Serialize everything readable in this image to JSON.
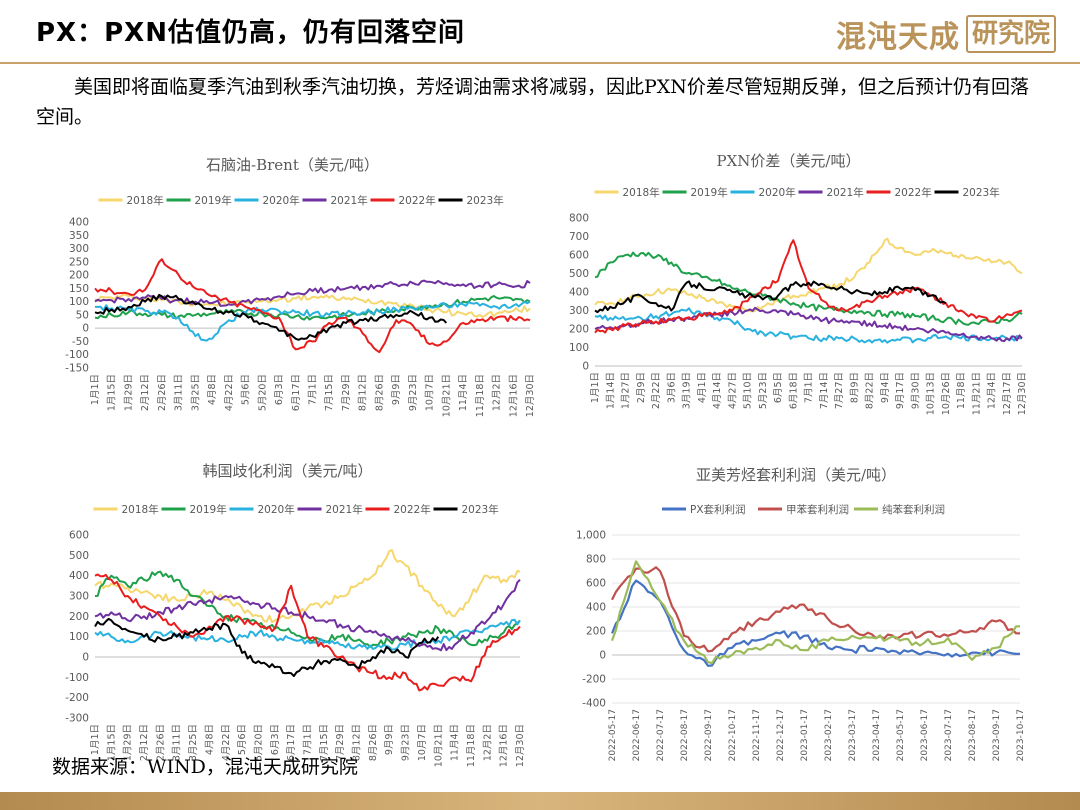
{
  "page": {
    "title": "PX：PXN估值仍高，仍有回落空间",
    "logo_main": "混沌天成",
    "logo_box": "研究院",
    "intro": "美国即将面临夏季汽油到秋季汽油切换，芳烃调油需求将减弱，因此PXN价差尽管短期反弹，但之后预计仍有回落空间。",
    "source": "数据来源：WIND，混沌天成研究院"
  },
  "chart_data": [
    {
      "id": "naphtha",
      "type": "line",
      "title": "石脑油-Brent（美元/吨）",
      "ylim": [
        -150,
        400
      ],
      "yticks": [
        -150,
        -100,
        -50,
        0,
        50,
        100,
        150,
        200,
        250,
        300,
        350,
        400
      ],
      "xtick_labels": [
        "1月1日",
        "1月15日",
        "1月29日",
        "2月12日",
        "2月26日",
        "3月11日",
        "3月25日",
        "4月8日",
        "4月22日",
        "5月6日",
        "5月20日",
        "6月3日",
        "6月17日",
        "7月1日",
        "7月15日",
        "7月29日",
        "8月12日",
        "8月26日",
        "9月9日",
        "9月23日",
        "10月7日",
        "10月21日",
        "11月4日",
        "11月18日",
        "12月2日",
        "12月16日",
        "12月30日"
      ],
      "legend_position": "top",
      "series": [
        {
          "name": "2018年",
          "color": "#f5d76e",
          "values": [
            110,
            115,
            120,
            112,
            105,
            100,
            95,
            90,
            92,
            98,
            102,
            108,
            112,
            118,
            115,
            110,
            105,
            100,
            95,
            85,
            70,
            60,
            55,
            50,
            55,
            65,
            75
          ]
        },
        {
          "name": "2019年",
          "color": "#1fa04b",
          "values": [
            40,
            50,
            60,
            55,
            50,
            45,
            50,
            55,
            60,
            58,
            55,
            50,
            45,
            40,
            42,
            48,
            55,
            62,
            70,
            78,
            85,
            90,
            100,
            110,
            115,
            105,
            100
          ]
        },
        {
          "name": "2020年",
          "color": "#29b1e0",
          "values": [
            80,
            75,
            70,
            65,
            60,
            40,
            -30,
            -40,
            30,
            60,
            70,
            65,
            60,
            55,
            50,
            55,
            60,
            65,
            70,
            75,
            80,
            85,
            90,
            85,
            80,
            85,
            100
          ]
        },
        {
          "name": "2021年",
          "color": "#7030a0",
          "values": [
            100,
            105,
            110,
            115,
            110,
            105,
            100,
            95,
            90,
            100,
            110,
            120,
            130,
            140,
            145,
            150,
            155,
            160,
            165,
            170,
            175,
            170,
            165,
            160,
            165,
            155,
            170
          ]
        },
        {
          "name": "2022年",
          "color": "#e81e1e",
          "values": [
            150,
            140,
            130,
            145,
            260,
            200,
            150,
            120,
            100,
            80,
            60,
            40,
            -80,
            -50,
            20,
            40,
            -20,
            -90,
            30,
            10,
            -60,
            -50,
            20,
            30,
            40,
            35,
            30
          ]
        },
        {
          "name": "2023年",
          "color": "#000000",
          "values": [
            60,
            70,
            80,
            100,
            120,
            110,
            90,
            70,
            60,
            50,
            20,
            -10,
            -40,
            -30,
            0,
            20,
            30,
            40,
            50,
            60,
            40,
            20,
            null,
            null,
            null,
            null,
            null
          ]
        }
      ]
    },
    {
      "id": "pxn",
      "type": "line",
      "title": "PXN价差（美元/吨）",
      "ylim": [
        0,
        800
      ],
      "yticks": [
        0,
        100,
        200,
        300,
        400,
        500,
        600,
        700,
        800
      ],
      "xtick_labels": [
        "1月1日",
        "1月14日",
        "1月27日",
        "2月9日",
        "2月22日",
        "3月6日",
        "3月19日",
        "4月1日",
        "4月14日",
        "4月27日",
        "5月10日",
        "5月23日",
        "6月5日",
        "6月18日",
        "7月1日",
        "7月14日",
        "7月27日",
        "8月9日",
        "8月22日",
        "9月4日",
        "9月17日",
        "9月30日",
        "10月13日",
        "10月26日",
        "11月8日",
        "11月21日",
        "12月4日",
        "12月17日",
        "12月30日"
      ],
      "legend_position": "top",
      "series": [
        {
          "name": "2018年",
          "color": "#f5d76e",
          "values": [
            330,
            340,
            360,
            380,
            400,
            410,
            390,
            370,
            340,
            320,
            300,
            320,
            350,
            380,
            400,
            420,
            440,
            480,
            560,
            680,
            640,
            600,
            620,
            610,
            600,
            590,
            560,
            560,
            500
          ]
        },
        {
          "name": "2019年",
          "color": "#1fa04b",
          "values": [
            480,
            560,
            600,
            610,
            590,
            560,
            500,
            480,
            460,
            420,
            400,
            380,
            360,
            340,
            320,
            310,
            300,
            300,
            290,
            280,
            280,
            270,
            260,
            250,
            240,
            230,
            240,
            250,
            280
          ]
        },
        {
          "name": "2020年",
          "color": "#29b1e0",
          "values": [
            270,
            260,
            250,
            260,
            270,
            280,
            300,
            280,
            260,
            240,
            200,
            180,
            170,
            160,
            150,
            150,
            150,
            150,
            140,
            140,
            140,
            140,
            150,
            160,
            150,
            150,
            150,
            150,
            150
          ]
        },
        {
          "name": "2021年",
          "color": "#7030a0",
          "values": [
            200,
            210,
            220,
            230,
            240,
            250,
            260,
            270,
            280,
            290,
            300,
            300,
            290,
            280,
            260,
            250,
            240,
            240,
            230,
            220,
            210,
            200,
            190,
            180,
            170,
            160,
            150,
            150,
            150
          ]
        },
        {
          "name": "2022年",
          "color": "#e81e1e",
          "values": [
            180,
            200,
            220,
            230,
            240,
            250,
            260,
            270,
            280,
            300,
            350,
            420,
            460,
            680,
            420,
            350,
            300,
            320,
            350,
            380,
            400,
            420,
            380,
            340,
            300,
            260,
            240,
            280,
            300
          ]
        },
        {
          "name": "2023年",
          "color": "#000000",
          "values": [
            300,
            320,
            350,
            380,
            340,
            300,
            450,
            430,
            420,
            400,
            380,
            360,
            380,
            440,
            450,
            440,
            420,
            400,
            390,
            400,
            420,
            410,
            380,
            340,
            null,
            null,
            null,
            null,
            null
          ]
        }
      ]
    },
    {
      "id": "korea",
      "type": "line",
      "title": "韩国歧化利润（美元/吨）",
      "ylim": [
        -300,
        600
      ],
      "yticks": [
        -300,
        -200,
        -100,
        0,
        100,
        200,
        300,
        400,
        500,
        600
      ],
      "xtick_labels": [
        "1月1日",
        "1月15日",
        "1月29日",
        "2月12日",
        "2月26日",
        "3月11日",
        "3月25日",
        "4月8日",
        "4月22日",
        "5月6日",
        "5月20日",
        "6月3日",
        "6月17日",
        "7月1日",
        "7月15日",
        "7月29日",
        "8月12日",
        "8月26日",
        "9月9日",
        "9月23日",
        "10月7日",
        "10月21日",
        "11月4日",
        "11月18日",
        "12月2日",
        "12月16日",
        "12月30日"
      ],
      "legend_position": "top",
      "series": [
        {
          "name": "2018年",
          "color": "#f5d76e",
          "values": [
            350,
            360,
            340,
            320,
            300,
            280,
            300,
            320,
            280,
            240,
            200,
            180,
            200,
            240,
            260,
            300,
            350,
            400,
            520,
            450,
            350,
            250,
            200,
            300,
            400,
            380,
            420
          ]
        },
        {
          "name": "2019年",
          "color": "#1fa04b",
          "values": [
            300,
            400,
            350,
            380,
            420,
            380,
            300,
            250,
            200,
            180,
            160,
            140,
            120,
            100,
            80,
            100,
            80,
            60,
            80,
            100,
            120,
            140,
            100,
            60,
            80,
            120,
            180
          ]
        },
        {
          "name": "2020年",
          "color": "#29b1e0",
          "values": [
            120,
            100,
            80,
            100,
            120,
            110,
            100,
            90,
            80,
            100,
            120,
            100,
            90,
            80,
            70,
            60,
            50,
            40,
            50,
            60,
            70,
            80,
            100,
            120,
            140,
            160,
            180
          ]
        },
        {
          "name": "2021年",
          "color": "#7030a0",
          "values": [
            200,
            220,
            180,
            200,
            220,
            240,
            260,
            280,
            300,
            280,
            260,
            240,
            220,
            200,
            180,
            160,
            140,
            120,
            100,
            80,
            60,
            40,
            60,
            120,
            180,
            260,
            380
          ]
        },
        {
          "name": "2022年",
          "color": "#e81e1e",
          "values": [
            400,
            380,
            300,
            250,
            200,
            150,
            100,
            150,
            200,
            180,
            160,
            140,
            350,
            100,
            50,
            0,
            -50,
            -80,
            -100,
            -80,
            -160,
            -140,
            -100,
            -120,
            50,
            100,
            150
          ]
        },
        {
          "name": "2023年",
          "color": "#000000",
          "values": [
            150,
            180,
            130,
            100,
            90,
            100,
            120,
            140,
            160,
            20,
            -20,
            -50,
            -80,
            -60,
            -20,
            -10,
            -50,
            0,
            40,
            0,
            70,
            100,
            null,
            null,
            null,
            null,
            null
          ]
        }
      ]
    },
    {
      "id": "arb",
      "type": "line",
      "title": "亚美芳烃套利利润（美元/吨）",
      "ylim": [
        -400,
        1000
      ],
      "yticks": [
        -400,
        -200,
        0,
        200,
        400,
        600,
        800,
        1000
      ],
      "ytick_labels": [
        "-400",
        "-200",
        "0",
        "200",
        "400",
        "600",
        "800",
        "1,000"
      ],
      "xtick_labels": [
        "2022-05-17",
        "2022-06-17",
        "2022-07-17",
        "2022-08-17",
        "2022-09-17",
        "2022-10-17",
        "2022-11-17",
        "2022-12-17",
        "2023-01-17",
        "2023-02-17",
        "2023-03-17",
        "2023-04-17",
        "2023-05-17",
        "2023-06-17",
        "2023-07-17",
        "2023-08-17",
        "2023-09-17",
        "2023-10-17"
      ],
      "legend_position": "top",
      "series": [
        {
          "name": "PX套利利润",
          "color": "#4472c4",
          "values": [
            180,
            620,
            450,
            40,
            -90,
            60,
            120,
            180,
            160,
            60,
            40,
            60,
            10,
            20,
            10,
            20,
            20,
            10
          ]
        },
        {
          "name": "甲苯套利利润",
          "color": "#c0504d",
          "values": [
            460,
            720,
            700,
            160,
            30,
            180,
            280,
            360,
            420,
            300,
            220,
            140,
            150,
            180,
            160,
            200,
            280,
            180
          ]
        },
        {
          "name": "纯苯套利利润",
          "color": "#9bbb59",
          "values": [
            120,
            780,
            450,
            120,
            -60,
            0,
            60,
            120,
            40,
            120,
            160,
            140,
            120,
            100,
            140,
            -40,
            60,
            240
          ]
        }
      ]
    }
  ]
}
